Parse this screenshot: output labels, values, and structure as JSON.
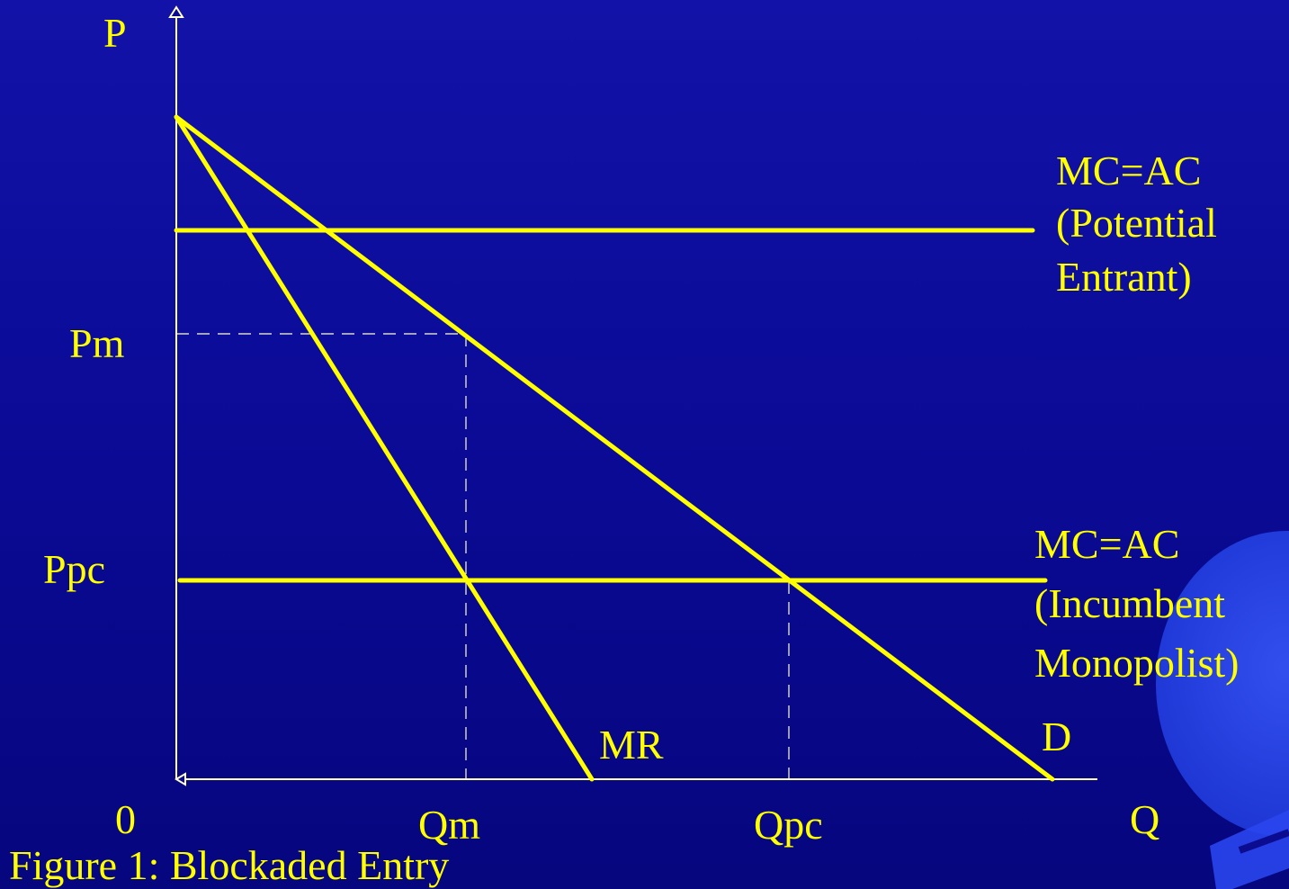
{
  "axes": {
    "y_label": "P",
    "x_label": "Q",
    "origin_label": "0"
  },
  "price_labels": {
    "monopoly": "Pm",
    "competitive": "Ppc"
  },
  "quantity_labels": {
    "monopoly": "Qm",
    "competitive": "Qpc"
  },
  "curves": {
    "demand": "D",
    "marginal_revenue": "MR",
    "entrant_cost": [
      "MC=AC",
      "(Potential",
      "Entrant)"
    ],
    "incumbent_cost": [
      "MC=AC",
      "(Incumbent",
      "Monopolist)"
    ]
  },
  "caption": "Figure 1: Blockaded Entry",
  "colors": {
    "background": "#0a0a94",
    "curve": "#ffff00",
    "axis": "#ffffd0"
  }
}
